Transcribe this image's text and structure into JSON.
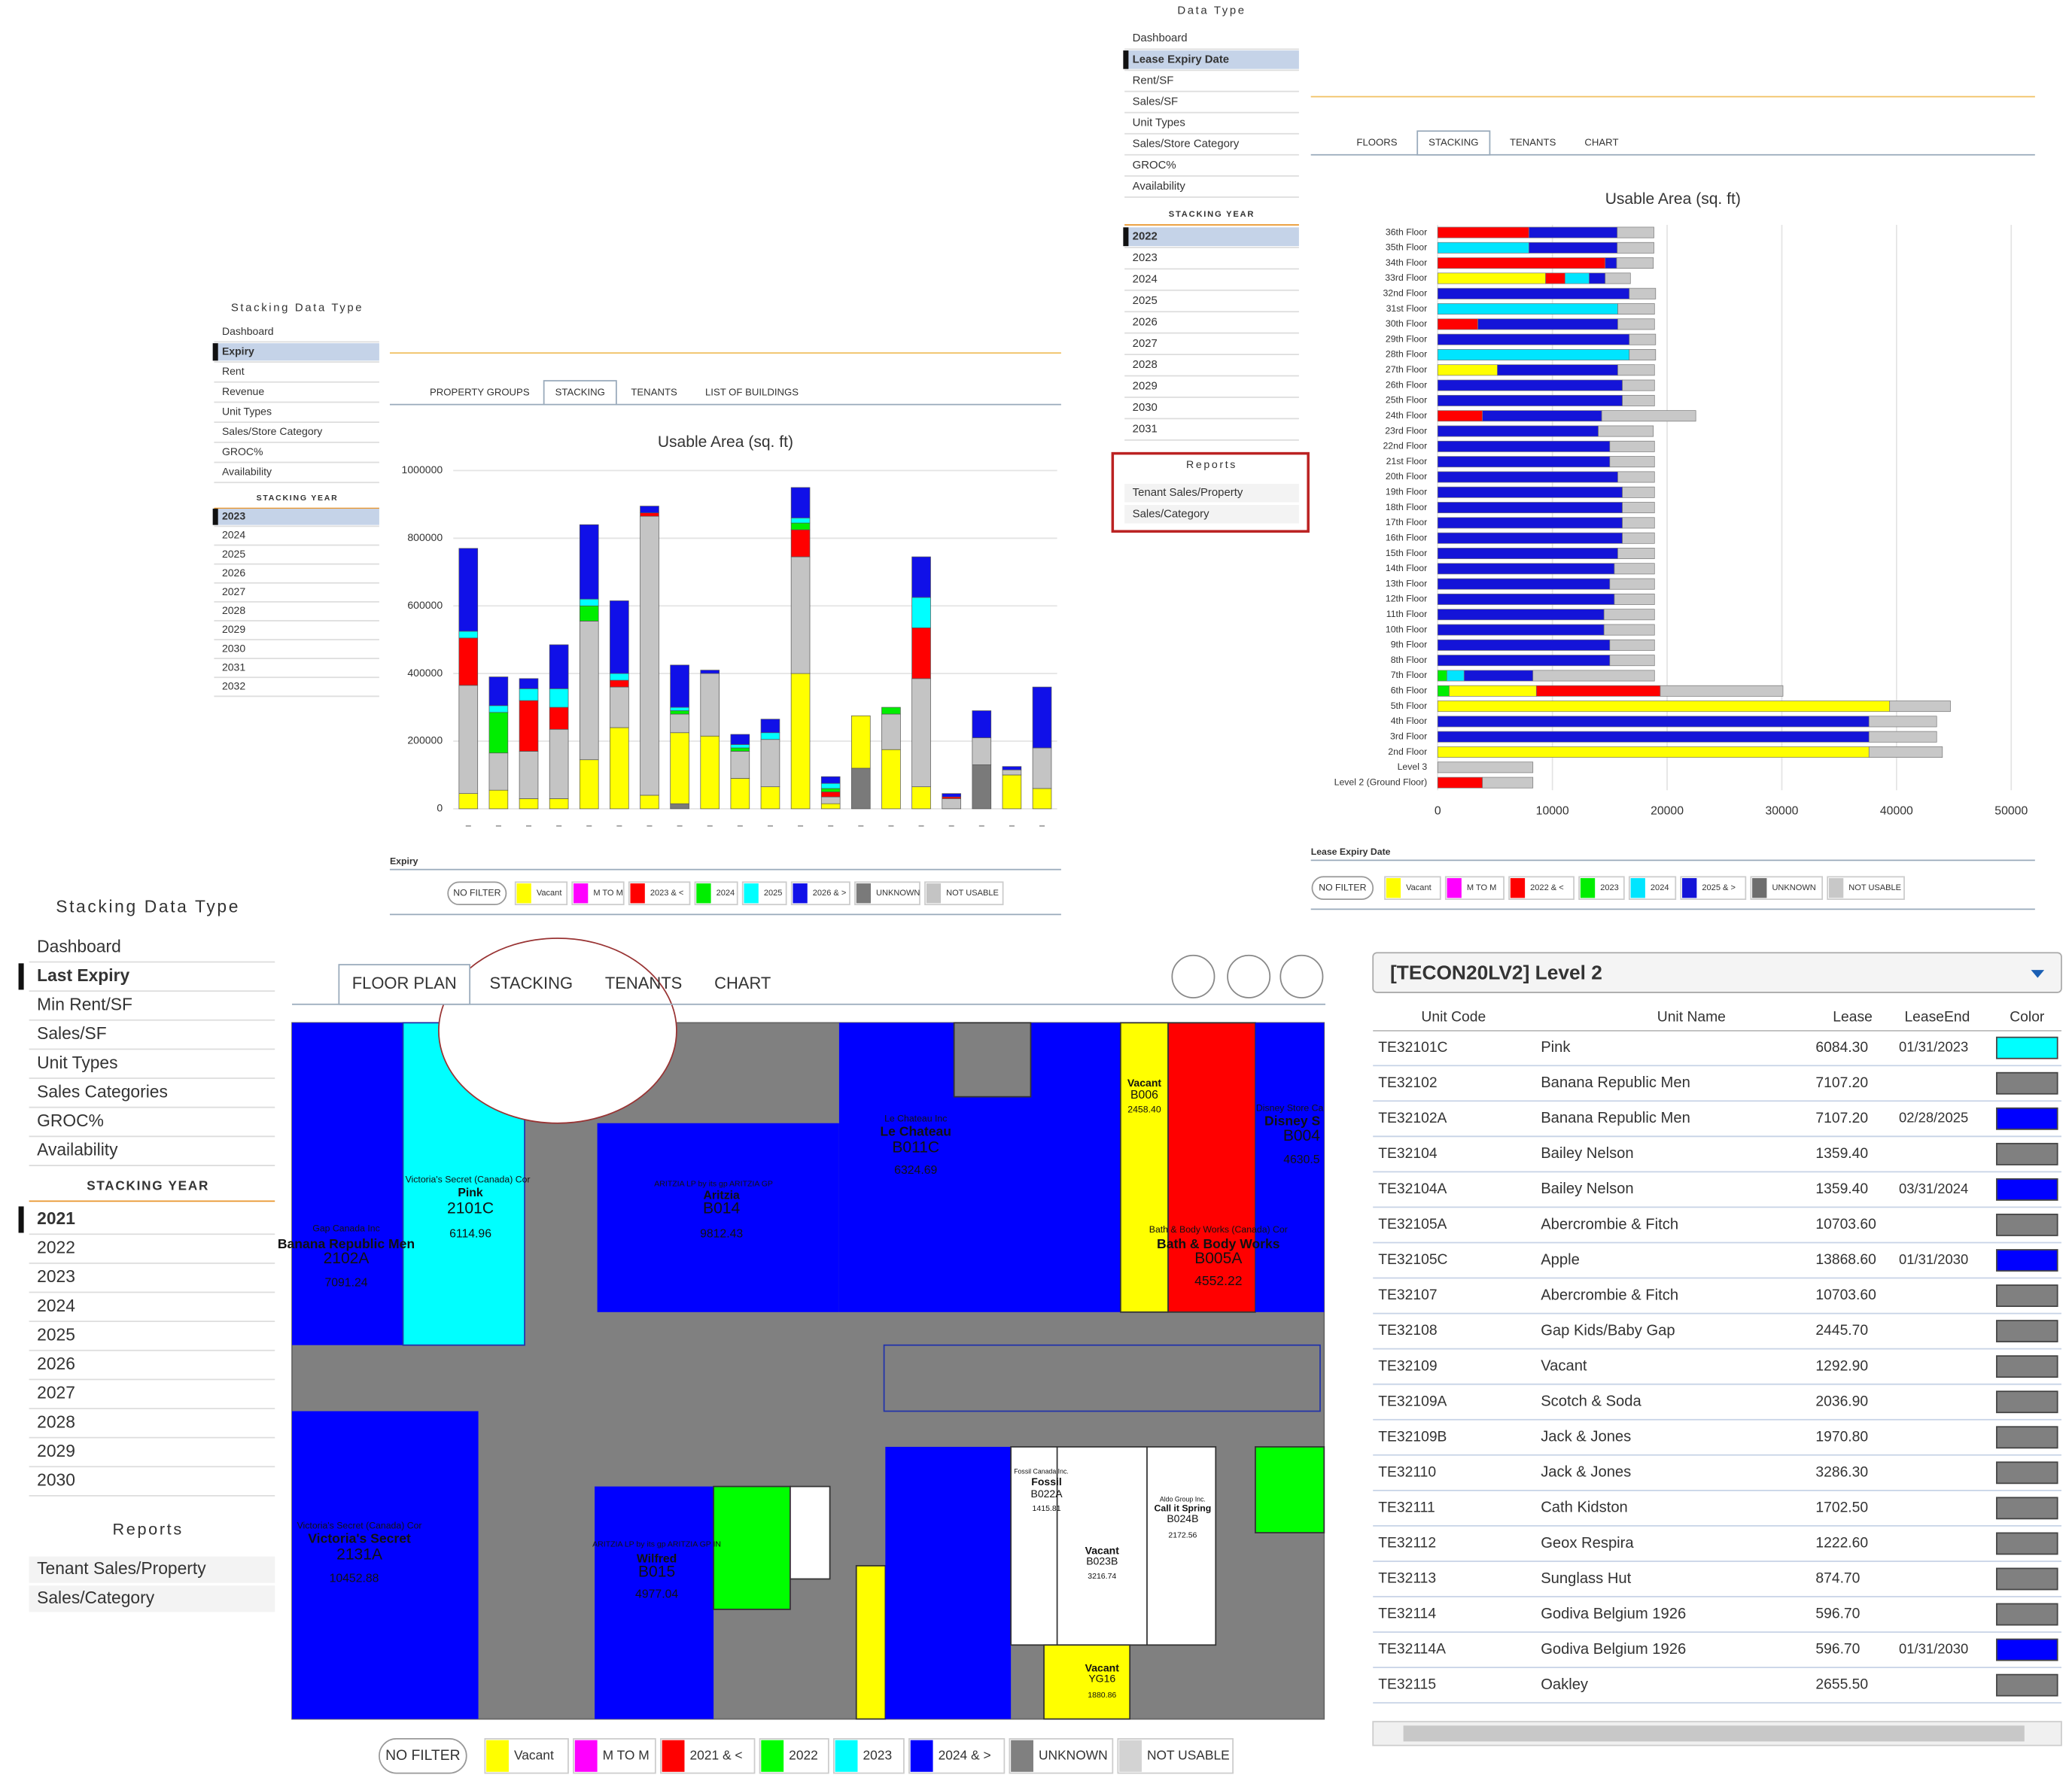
{
  "panels": [
    {
      "sidebar": {
        "title": "Stacking Data Type",
        "items": [
          "Dashboard",
          "Expiry",
          "Rent",
          "Revenue",
          "Unit Types",
          "Sales/Store Category",
          "GROC%",
          "Availability"
        ],
        "selected_item": "Expiry",
        "year_title": "STACKING YEAR",
        "years": [
          "2023",
          "2024",
          "2025",
          "2026",
          "2027",
          "2028",
          "2029",
          "2030",
          "2031",
          "2032"
        ],
        "selected_year": "2023"
      },
      "tabs": [
        "PROPERTY GROUPS",
        "STACKING",
        "TENANTS",
        "LIST OF BUILDINGS"
      ],
      "active_tab": "STACKING",
      "filter_button": "NO FILTER"
    },
    {
      "sidebar": {
        "title": "Data Type",
        "items": [
          "Dashboard",
          "Lease Expiry Date",
          "Rent/SF",
          "Sales/SF",
          "Unit Types",
          "Sales/Store Category",
          "GROC%",
          "Availability"
        ],
        "selected_item": "Lease Expiry Date",
        "year_title": "STACKING YEAR",
        "years": [
          "2022",
          "2023",
          "2024",
          "2025",
          "2026",
          "2027",
          "2028",
          "2029",
          "2030",
          "2031"
        ],
        "selected_year": "2022",
        "reports_title": "Reports",
        "reports": [
          "Tenant Sales/Property",
          "Sales/Category"
        ]
      },
      "tabs": [
        "FLOORS",
        "STACKING",
        "TENANTS",
        "CHART"
      ],
      "active_tab": "STACKING",
      "filter_button": "NO FILTER"
    },
    {
      "sidebar": {
        "title": "Stacking Data Type",
        "items": [
          "Dashboard",
          "Last Expiry",
          "Min Rent/SF",
          "Sales/SF",
          "Unit Types",
          "Sales Categories",
          "GROC%",
          "Availability"
        ],
        "selected_item": "Last Expiry",
        "year_title": "STACKING YEAR",
        "years": [
          "2021",
          "2022",
          "2023",
          "2024",
          "2025",
          "2026",
          "2027",
          "2028",
          "2029",
          "2030"
        ],
        "selected_year": "2021",
        "reports_title": "Reports",
        "reports": [
          "Tenant Sales/Property",
          "Sales/Category"
        ]
      },
      "tabs": [
        "FLOOR PLAN",
        "STACKING",
        "TENANTS",
        "CHART"
      ],
      "active_tab": "FLOOR PLAN",
      "filter_button": "NO FILTER",
      "legend": [
        {
          "name": "Vacant",
          "color": "#ffff00"
        },
        {
          "name": "M TO M",
          "color": "#ff00ff"
        },
        {
          "name": "2021 & <",
          "color": "#ff0000"
        },
        {
          "name": "2022",
          "color": "#00ff00"
        },
        {
          "name": "2023",
          "color": "#00ffff"
        },
        {
          "name": "2024 & >",
          "color": "#0000ff"
        },
        {
          "name": "UNKNOWN",
          "color": "#808080"
        },
        {
          "name": "NOT USABLE",
          "color": "#d3d3d3"
        }
      ]
    }
  ],
  "chart_data": [
    {
      "type": "bar",
      "orientation": "vertical",
      "stacked": true,
      "title": "Usable Area (sq. ft)",
      "legend_title": "Expiry",
      "categories": [
        null,
        null,
        null,
        null,
        null,
        null,
        null,
        null,
        null,
        null,
        null,
        null,
        null,
        null,
        null,
        null,
        null,
        null,
        null,
        null
      ],
      "ylim": [
        0,
        1000000
      ],
      "yticks": [
        0,
        200000,
        400000,
        600000,
        800000,
        1000000
      ],
      "grid": true,
      "series": [
        {
          "name": "Vacant",
          "color": "#ffff00",
          "values": [
            45000,
            55000,
            30000,
            30000,
            145000,
            240000,
            40000,
            210000,
            215000,
            90000,
            65000,
            400000,
            15000,
            155000,
            175000,
            65000,
            0,
            0,
            100000,
            60000
          ]
        },
        {
          "name": "M TO M",
          "color": "#ff00ff",
          "values": [
            0,
            0,
            0,
            0,
            0,
            0,
            0,
            0,
            0,
            0,
            0,
            0,
            0,
            0,
            0,
            0,
            0,
            0,
            0,
            0
          ]
        },
        {
          "name": "2023 & <",
          "color": "#ff0000",
          "values": [
            140000,
            0,
            150000,
            65000,
            0,
            20000,
            10000,
            0,
            0,
            0,
            0,
            80000,
            15000,
            0,
            0,
            150000,
            5000,
            0,
            0,
            0
          ]
        },
        {
          "name": "2024",
          "color": "#00ee00",
          "values": [
            0,
            120000,
            0,
            0,
            45000,
            0,
            0,
            10000,
            0,
            10000,
            0,
            20000,
            10000,
            0,
            20000,
            0,
            0,
            0,
            0,
            0
          ]
        },
        {
          "name": "2025",
          "color": "#00ffff",
          "values": [
            20000,
            20000,
            35000,
            55000,
            20000,
            20000,
            0,
            10000,
            0,
            10000,
            20000,
            15000,
            15000,
            0,
            0,
            90000,
            0,
            0,
            0,
            0
          ]
        },
        {
          "name": "2026 & >",
          "color": "#1010e8",
          "values": [
            245000,
            85000,
            30000,
            130000,
            220000,
            215000,
            20000,
            125000,
            10000,
            30000,
            40000,
            90000,
            20000,
            0,
            0,
            120000,
            10000,
            80000,
            10000,
            180000
          ]
        },
        {
          "name": "UNKNOWN",
          "color": "#7a7a7a",
          "values": [
            0,
            0,
            0,
            0,
            0,
            0,
            0,
            15000,
            0,
            0,
            0,
            0,
            0,
            120000,
            0,
            0,
            0,
            130000,
            0,
            0
          ]
        },
        {
          "name": "NOT USABLE",
          "color": "#c4c4c4",
          "values": [
            320000,
            110000,
            140000,
            205000,
            410000,
            120000,
            825000,
            55000,
            185000,
            80000,
            140000,
            345000,
            20000,
            0,
            105000,
            320000,
            30000,
            80000,
            15000,
            120000
          ]
        }
      ]
    },
    {
      "type": "bar",
      "orientation": "horizontal",
      "stacked": true,
      "title": "Usable Area (sq. ft)",
      "legend_title": "Lease Expiry Date",
      "categories": [
        "36th Floor",
        "35th Floor",
        "34th Floor",
        "33rd Floor",
        "32nd Floor",
        "31st Floor",
        "30th Floor",
        "29th Floor",
        "28th Floor",
        "27th Floor",
        "26th Floor",
        "25th Floor",
        "24th Floor",
        "23rd Floor",
        "22nd Floor",
        "21st Floor",
        "20th Floor",
        "19th Floor",
        "18th Floor",
        "17th Floor",
        "16th Floor",
        "15th Floor",
        "14th Floor",
        "13th Floor",
        "12th Floor",
        "11th Floor",
        "10th Floor",
        "9th Floor",
        "8th Floor",
        "7th Floor",
        "6th Floor",
        "5th Floor",
        "4th Floor",
        "3rd Floor",
        "2nd Floor",
        "Level 3",
        "Level 2 (Ground Floor)"
      ],
      "xlim": [
        0,
        51000
      ],
      "xticks": [
        0,
        10000,
        20000,
        30000,
        40000,
        50000
      ],
      "grid": true,
      "series": [
        {
          "name": "Vacant",
          "color": "#ffff00",
          "values": [
            0,
            0,
            0,
            9400,
            0,
            0,
            0,
            0,
            0,
            5200,
            0,
            0,
            0,
            0,
            0,
            0,
            0,
            0,
            0,
            0,
            0,
            0,
            0,
            0,
            0,
            0,
            0,
            0,
            0,
            0,
            7600,
            39400,
            0,
            0,
            37600,
            0,
            0
          ]
        },
        {
          "name": "M TO M",
          "color": "#ff00ff",
          "values": [
            0,
            0,
            0,
            0,
            0,
            0,
            0,
            0,
            0,
            0,
            0,
            0,
            0,
            0,
            0,
            0,
            0,
            0,
            0,
            0,
            0,
            0,
            0,
            0,
            0,
            0,
            0,
            0,
            0,
            0,
            0,
            0,
            0,
            0,
            0,
            0,
            0
          ]
        },
        {
          "name": "2022 & <",
          "color": "#ff0000",
          "values": [
            7950,
            0,
            14600,
            1700,
            0,
            0,
            3500,
            0,
            0,
            0,
            0,
            0,
            3900,
            0,
            0,
            0,
            0,
            0,
            0,
            0,
            0,
            0,
            0,
            0,
            0,
            0,
            0,
            0,
            0,
            0,
            10800,
            0,
            0,
            0,
            0,
            0,
            3900
          ]
        },
        {
          "name": "2023",
          "color": "#00ee00",
          "values": [
            0,
            0,
            0,
            0,
            0,
            0,
            0,
            0,
            0,
            0,
            0,
            0,
            0,
            0,
            0,
            0,
            0,
            0,
            0,
            0,
            0,
            0,
            0,
            0,
            0,
            0,
            0,
            0,
            0,
            800,
            1000,
            0,
            0,
            0,
            0,
            0,
            0
          ]
        },
        {
          "name": "2024",
          "color": "#00e5ff",
          "values": [
            0,
            7950,
            0,
            2100,
            0,
            15700,
            0,
            0,
            16700,
            0,
            0,
            0,
            0,
            0,
            0,
            0,
            0,
            0,
            0,
            0,
            0,
            0,
            0,
            0,
            0,
            0,
            0,
            0,
            0,
            1500,
            0,
            0,
            0,
            0,
            0,
            0,
            0
          ]
        },
        {
          "name": "2025 & >",
          "color": "#1414d8",
          "values": [
            7700,
            7700,
            1000,
            1400,
            16700,
            0,
            12200,
            16700,
            0,
            10500,
            16100,
            16100,
            10400,
            14000,
            15000,
            15000,
            15700,
            16100,
            16100,
            16100,
            16100,
            15700,
            15400,
            15000,
            15400,
            14500,
            14500,
            15000,
            15000,
            6000,
            0,
            0,
            37600,
            37600,
            0,
            0,
            0
          ]
        },
        {
          "name": "UNKNOWN",
          "color": "#6e6e6e",
          "values": [
            0,
            0,
            0,
            0,
            0,
            0,
            0,
            0,
            0,
            0,
            0,
            0,
            0,
            0,
            0,
            0,
            0,
            0,
            0,
            0,
            0,
            0,
            0,
            0,
            0,
            0,
            0,
            0,
            0,
            0,
            0,
            0,
            0,
            0,
            0,
            0,
            0
          ]
        },
        {
          "name": "NOT USABLE",
          "color": "#c8c8c8",
          "values": [
            3200,
            3200,
            3200,
            2200,
            2300,
            3200,
            3200,
            2300,
            2300,
            3200,
            2800,
            2800,
            8200,
            4800,
            3900,
            3900,
            3200,
            2800,
            2800,
            2800,
            2800,
            3200,
            3500,
            3900,
            3500,
            4400,
            4400,
            3900,
            3900,
            10600,
            10700,
            5300,
            5900,
            5900,
            6400,
            8300,
            4400
          ]
        }
      ]
    }
  ],
  "floor_plan": {
    "units": [
      {
        "tenant": "Victoria's Secret (Canada) Cor",
        "name": "Pink",
        "code": "2101C",
        "area": "6114.96"
      },
      {
        "tenant": "Gap Canada Inc",
        "name": "Banana Republic Men",
        "code": "2102A",
        "area": "7091.24"
      },
      {
        "tenant": "ARITZIA LP by its gp ARITZIA GP",
        "name": "Aritzia",
        "code": "B014",
        "area": "9812.43"
      },
      {
        "tenant": "Le Chateau Inc",
        "name": "Le Chateau",
        "code": "B011C",
        "area": "6324.69"
      },
      {
        "name": "Vacant",
        "code": "B006",
        "area": "2458.40"
      },
      {
        "tenant": "Bath & Body Works (Canada) Cor",
        "name": "Bath & Body Works",
        "code": "B005A",
        "area": "4552.22"
      },
      {
        "tenant": "Disney Store Ca",
        "name": "Disney S",
        "code": "B004",
        "area": "4630.5"
      },
      {
        "tenant": "Victoria's Secret (Canada) Cor",
        "name": "Victoria's Secret",
        "code": "2131A",
        "area": "10452.88"
      },
      {
        "tenant": "ARITZIA LP by its gp ARITZIA GP IN",
        "name": "Wilfred",
        "code": "B015",
        "area": "4977.04"
      },
      {
        "tenant": "Fossil Canada Inc.",
        "name": "Fossil",
        "code": "B022A",
        "area": "1415.81"
      },
      {
        "name": "Vacant",
        "code": "B023B",
        "area": "3216.74"
      },
      {
        "tenant": "Aldo Group Inc.",
        "name": "Call it Spring",
        "code": "B024B",
        "area": "2172.56"
      },
      {
        "name": "Vacant",
        "code": "YG16",
        "area": "1880.86"
      }
    ]
  },
  "table": {
    "title": "[TECON20LV2] Level 2",
    "columns": [
      "Unit Code",
      "Unit Name",
      "Lease",
      "LeaseEnd",
      "Color"
    ],
    "rows": [
      {
        "code": "TE32101C",
        "name": "Pink",
        "lease": "6084.30",
        "lease_end": "01/31/2023",
        "color": "#00ffff"
      },
      {
        "code": "TE32102",
        "name": "Banana Republic Men",
        "lease": "7107.20",
        "lease_end": null,
        "color": "#808080"
      },
      {
        "code": "TE32102A",
        "name": "Banana Republic Men",
        "lease": "7107.20",
        "lease_end": "02/28/2025",
        "color": "#0000ff"
      },
      {
        "code": "TE32104",
        "name": "Bailey Nelson",
        "lease": "1359.40",
        "lease_end": null,
        "color": "#808080"
      },
      {
        "code": "TE32104A",
        "name": "Bailey Nelson",
        "lease": "1359.40",
        "lease_end": "03/31/2024",
        "color": "#0000ff"
      },
      {
        "code": "TE32105A",
        "name": "Abercrombie & Fitch",
        "lease": "10703.60",
        "lease_end": null,
        "color": "#808080"
      },
      {
        "code": "TE32105C",
        "name": "Apple",
        "lease": "13868.60",
        "lease_end": "01/31/2030",
        "color": "#0000ff"
      },
      {
        "code": "TE32107",
        "name": "Abercrombie & Fitch",
        "lease": "10703.60",
        "lease_end": null,
        "color": "#808080"
      },
      {
        "code": "TE32108",
        "name": "Gap Kids/Baby Gap",
        "lease": "2445.70",
        "lease_end": null,
        "color": "#808080"
      },
      {
        "code": "TE32109",
        "name": "Vacant",
        "lease": "1292.90",
        "lease_end": null,
        "color": "#808080"
      },
      {
        "code": "TE32109A",
        "name": "Scotch & Soda",
        "lease": "2036.90",
        "lease_end": null,
        "color": "#808080"
      },
      {
        "code": "TE32109B",
        "name": "Jack & Jones",
        "lease": "1970.80",
        "lease_end": null,
        "color": "#808080"
      },
      {
        "code": "TE32110",
        "name": "Jack & Jones",
        "lease": "3286.30",
        "lease_end": null,
        "color": "#808080"
      },
      {
        "code": "TE32111",
        "name": "Cath Kidston",
        "lease": "1702.50",
        "lease_end": null,
        "color": "#808080"
      },
      {
        "code": "TE32112",
        "name": "Geox Respira",
        "lease": "1222.60",
        "lease_end": null,
        "color": "#808080"
      },
      {
        "code": "TE32113",
        "name": "Sunglass Hut",
        "lease": "874.70",
        "lease_end": null,
        "color": "#808080"
      },
      {
        "code": "TE32114",
        "name": "Godiva Belgium 1926",
        "lease": "596.70",
        "lease_end": null,
        "color": "#808080"
      },
      {
        "code": "TE32114A",
        "name": "Godiva Belgium 1926",
        "lease": "596.70",
        "lease_end": "01/31/2030",
        "color": "#0000ff"
      },
      {
        "code": "TE32115",
        "name": "Oakley",
        "lease": "2655.50",
        "lease_end": null,
        "color": "#808080"
      }
    ]
  }
}
